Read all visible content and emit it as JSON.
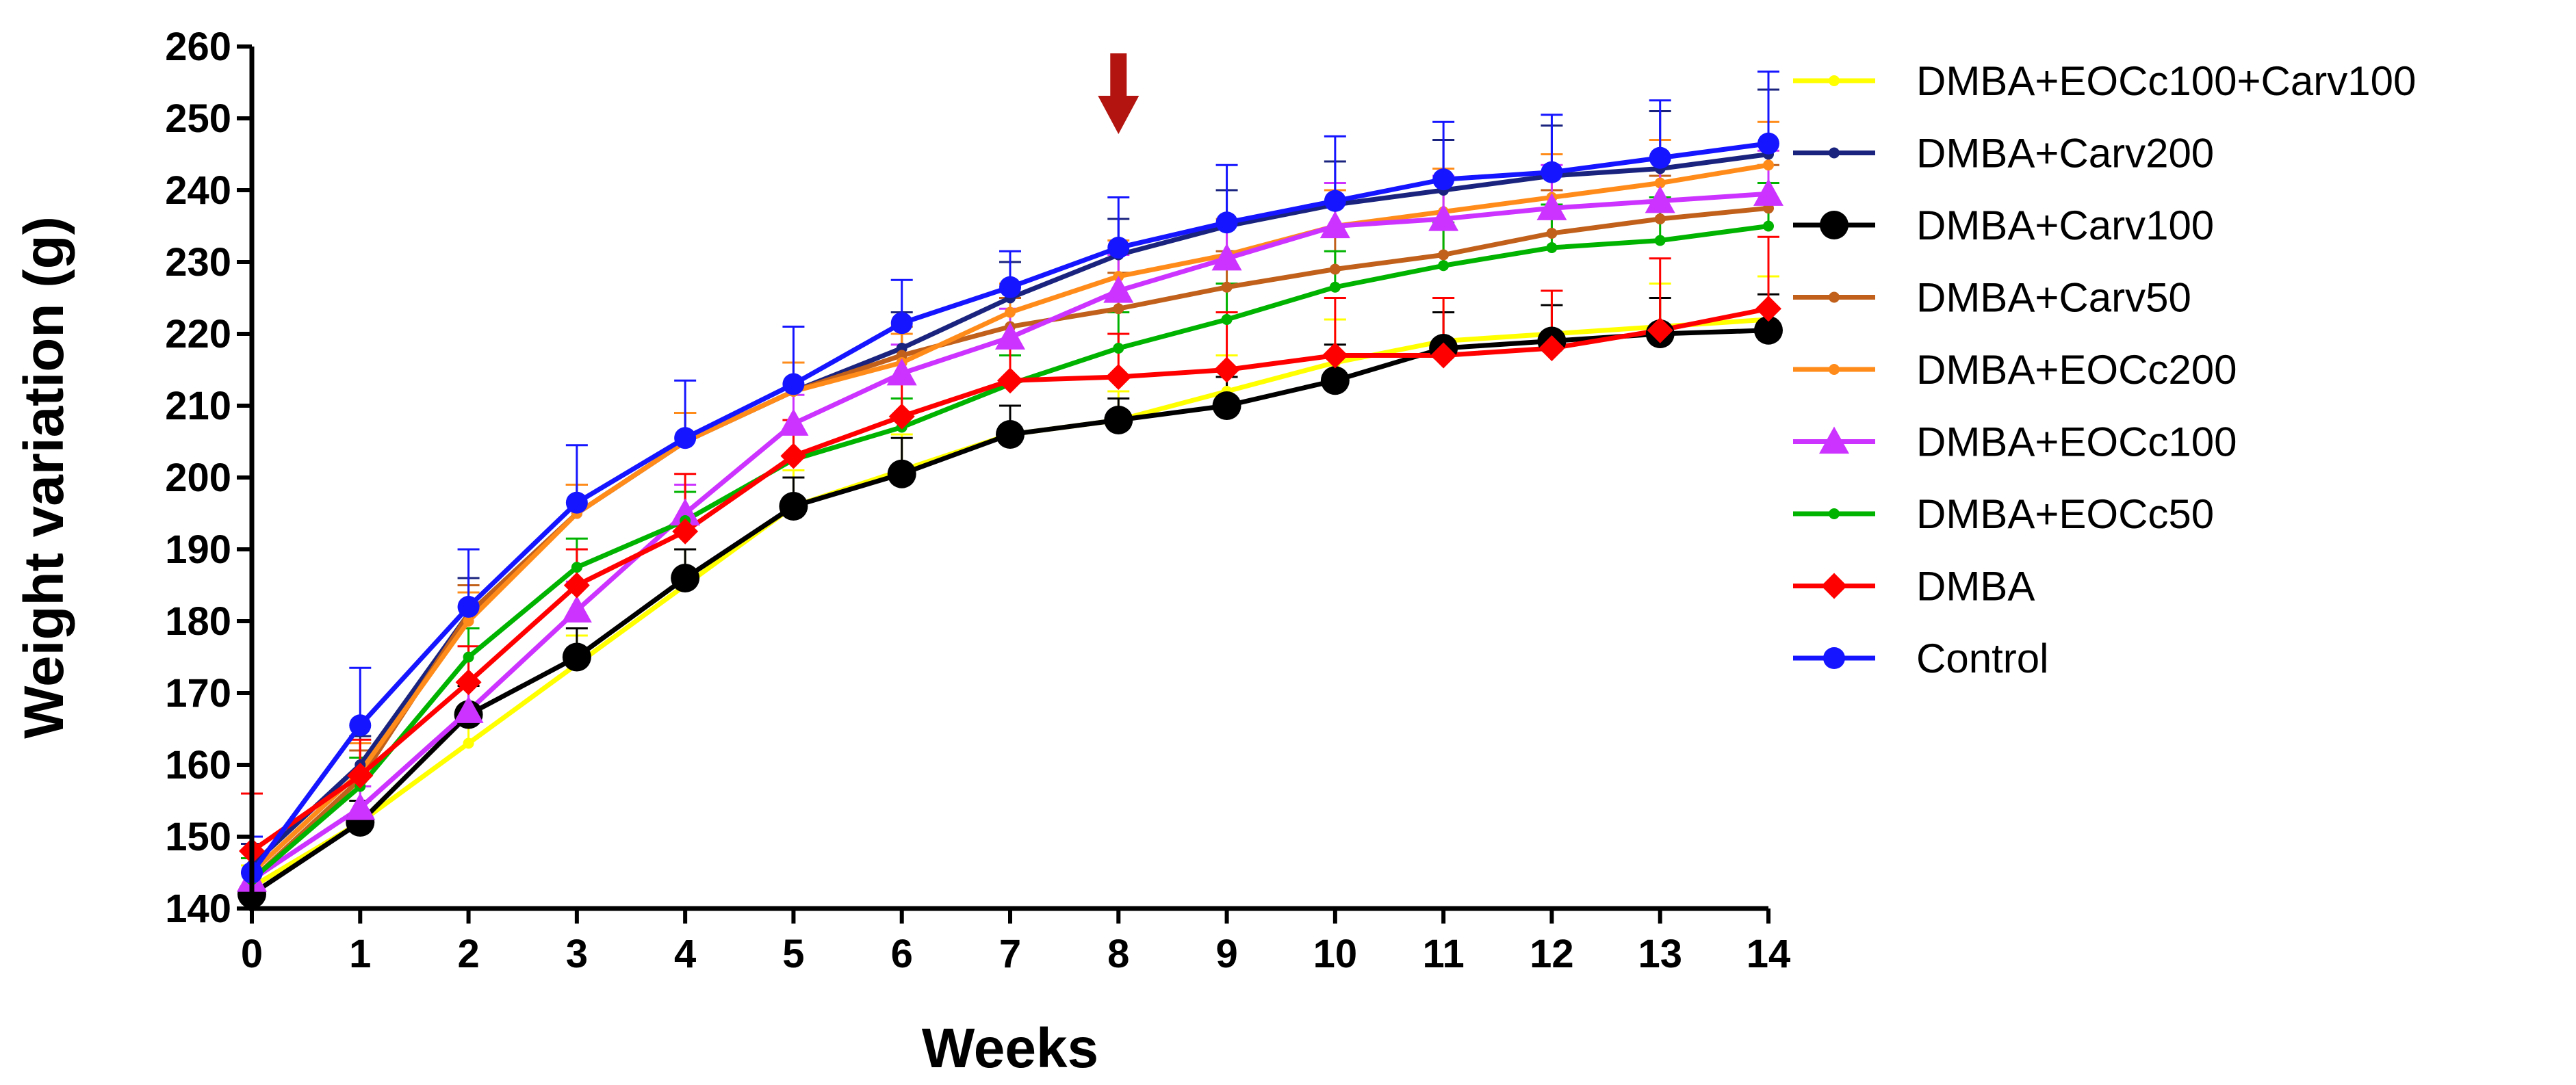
{
  "chart_data": {
    "type": "line",
    "title": "",
    "xlabel": "Weeks",
    "ylabel": "Weight variation (g)",
    "xlim": [
      0,
      14
    ],
    "ylim": [
      140,
      260
    ],
    "x_ticks": [
      0,
      1,
      2,
      3,
      4,
      5,
      6,
      7,
      8,
      9,
      10,
      11,
      12,
      13,
      14
    ],
    "y_ticks": [
      140,
      150,
      160,
      170,
      180,
      190,
      200,
      210,
      220,
      230,
      240,
      250,
      260
    ],
    "grid": false,
    "legend_position": "right",
    "annotation": {
      "type": "arrow",
      "x": 8,
      "color": "#b3140f",
      "direction": "down"
    },
    "x": [
      0,
      1,
      2,
      3,
      4,
      5,
      6,
      7,
      8,
      9,
      10,
      11,
      12,
      13,
      14
    ],
    "series": [
      {
        "name": "DMBA+EOCc100+Carv100",
        "color": "#ffff00",
        "marker": "dot-small",
        "values": [
          143,
          152,
          163,
          174,
          185,
          196,
          201,
          206,
          208,
          212,
          216,
          219,
          220,
          221,
          222
        ],
        "errors": [
          3,
          3,
          4,
          4,
          5,
          5,
          5,
          4,
          4,
          5,
          6,
          6,
          6,
          6,
          6
        ]
      },
      {
        "name": "DMBA+Carv200",
        "color": "#1a237e",
        "marker": "dot-small",
        "values": [
          146,
          160,
          181,
          195,
          205,
          212,
          218,
          225,
          231,
          235,
          238,
          240,
          242,
          243,
          245
        ],
        "errors": [
          3,
          4,
          5,
          4,
          4,
          4,
          5,
          5,
          5,
          5,
          6,
          7,
          7,
          8,
          9
        ]
      },
      {
        "name": "DMBA+Carv100",
        "color": "#000000",
        "marker": "dot-large",
        "values": [
          142,
          152,
          167,
          175,
          186,
          196,
          200.5,
          206,
          208,
          210,
          213.5,
          218,
          219,
          220,
          220.5
        ],
        "errors": [
          3,
          3,
          4,
          4,
          4,
          4,
          5,
          4,
          3,
          4,
          5,
          5,
          5,
          5,
          5
        ]
      },
      {
        "name": "DMBA+Carv50",
        "color": "#c0601a",
        "marker": "dot-small",
        "values": [
          144,
          158,
          181,
          195,
          205,
          212,
          217,
          221,
          223.5,
          226.5,
          229,
          231,
          234,
          236,
          237.5
        ],
        "errors": [
          3,
          4,
          4,
          4,
          4,
          4,
          4,
          4,
          5,
          5,
          5,
          6,
          6,
          6,
          6
        ]
      },
      {
        "name": "DMBA+EOCc200",
        "color": "#ff8c1a",
        "marker": "dot-small",
        "values": [
          145,
          159,
          180,
          195,
          205,
          212,
          216,
          223,
          228,
          231,
          235,
          237,
          239,
          241,
          243.5
        ],
        "errors": [
          3,
          4,
          4,
          4,
          4,
          4,
          4,
          4,
          5,
          5,
          5,
          6,
          6,
          6,
          6
        ]
      },
      {
        "name": "DMBA+EOCc100",
        "color": "#cc33ff",
        "marker": "triangle",
        "values": [
          144,
          154,
          167.5,
          181.5,
          195,
          207.5,
          214.5,
          219.5,
          226,
          230.5,
          235,
          236,
          237.5,
          238.5,
          239.5
        ],
        "errors": [
          3,
          3,
          4,
          4,
          4,
          4,
          4,
          4,
          5,
          5,
          6,
          6,
          6,
          6,
          6
        ]
      },
      {
        "name": "DMBA+EOCc50",
        "color": "#00b300",
        "marker": "dot-small",
        "values": [
          144,
          157,
          175,
          187.5,
          194,
          202.5,
          207,
          213,
          218,
          222,
          226.5,
          229.5,
          232,
          233,
          235
        ],
        "errors": [
          3,
          4,
          4,
          4,
          4,
          4,
          4,
          4,
          5,
          5,
          5,
          6,
          6,
          6,
          6
        ]
      },
      {
        "name": "DMBA",
        "color": "#ff0000",
        "marker": "diamond",
        "values": [
          148,
          158.5,
          171.5,
          185,
          192.5,
          203,
          208.5,
          213.5,
          214,
          215,
          217,
          217,
          218,
          220.5,
          223.5
        ],
        "errors": [
          8,
          5,
          5,
          5,
          8,
          5,
          5,
          5,
          6,
          8,
          8,
          8,
          8,
          10,
          10
        ]
      },
      {
        "name": "Control",
        "color": "#1515ff",
        "marker": "dot",
        "values": [
          145,
          165.5,
          182,
          196.5,
          205.5,
          213,
          221.5,
          226.5,
          232,
          235.5,
          238.5,
          241.5,
          242.5,
          244.5,
          246.5
        ],
        "errors": [
          5,
          8,
          8,
          8,
          8,
          8,
          6,
          5,
          7,
          8,
          9,
          8,
          8,
          8,
          10
        ]
      }
    ]
  }
}
